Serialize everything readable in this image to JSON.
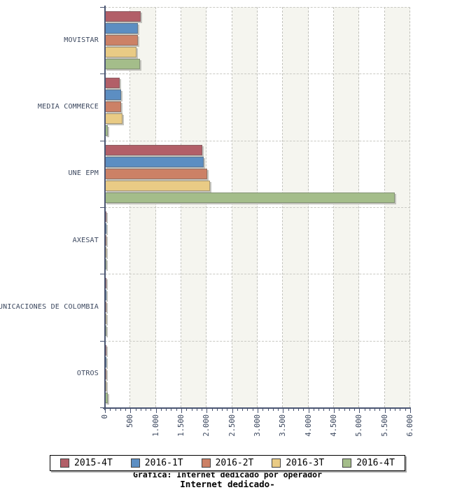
{
  "chart_data": {
    "type": "bar",
    "orientation": "horizontal",
    "title": "Gráfica: Internet dedicado por operador",
    "subtitle": "Internet dedicado-",
    "categories": [
      "MOVISTAR",
      "MEDIA COMMERCE",
      "UNE EPM",
      "AXESAT",
      "UNICACIONES DE COLOMBIA",
      "OTROS"
    ],
    "series": [
      {
        "name": "2015-4T",
        "color": "#b25f68",
        "values": [
          700,
          290,
          1910,
          15,
          8,
          18
        ]
      },
      {
        "name": "2016-1T",
        "color": "#5c8ec2",
        "values": [
          640,
          320,
          1945,
          20,
          10,
          28
        ]
      },
      {
        "name": "2016-2T",
        "color": "#cc8166",
        "values": [
          645,
          310,
          2005,
          18,
          8,
          22
        ]
      },
      {
        "name": "2016-3T",
        "color": "#e9cb85",
        "values": [
          615,
          345,
          2065,
          20,
          8,
          18
        ]
      },
      {
        "name": "2016-4T",
        "color": "#a4bd8a",
        "values": [
          685,
          60,
          5700,
          25,
          10,
          60
        ]
      }
    ],
    "xlim": [
      0,
      6000
    ],
    "x_tick_labels": [
      "0",
      "500",
      "1.000",
      "1.500",
      "2.000",
      "2.500",
      "3.000",
      "3.500",
      "4.000",
      "4.500",
      "5.000",
      "5.500",
      "6.000"
    ],
    "x_major_tick_step": 500,
    "x_minor_tick_step": 100,
    "grid": "dashed",
    "background_bands": "alternating",
    "legend_position": "bottom"
  },
  "legend": {
    "items": [
      "2015-4T",
      "2016-1T",
      "2016-2T",
      "2016-3T",
      "2016-4T"
    ]
  },
  "captions": {
    "line1": "Gráfica: Internet dedicado por operador",
    "line2": "Internet dedicado-"
  },
  "colors": {
    "band": "#f5f5ef",
    "grid_dash": "#c6c6c0",
    "axis": "#4a5572",
    "tick_label": "#3c485f",
    "bar_shadow": "#c4c4be",
    "legend_border": "#000000"
  }
}
